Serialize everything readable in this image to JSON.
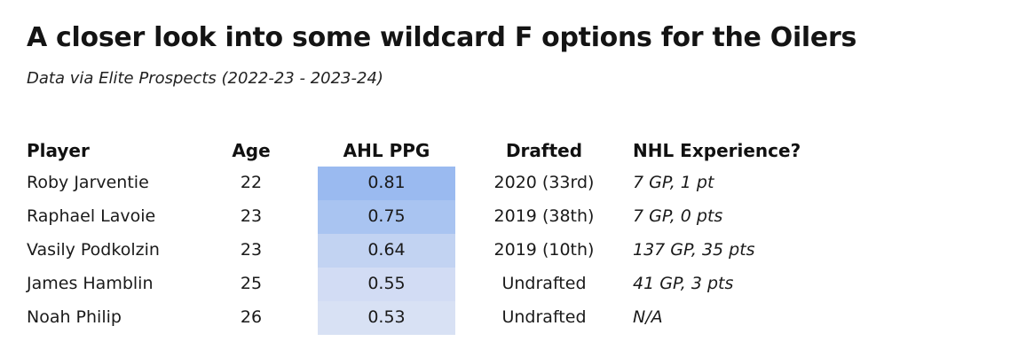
{
  "header": {
    "title": "A closer look into some wildcard F options for the Oilers",
    "subtitle": "Data via Elite Prospects (2022-23 - 2023-24)"
  },
  "table": {
    "columns": {
      "player": "Player",
      "age": "Age",
      "ppg": "AHL PPG",
      "drafted": "Drafted",
      "nhl": "NHL Experience?"
    },
    "rows": [
      {
        "player": "Roby Jarventie",
        "age": "22",
        "ppg": "0.81",
        "ppg_color": "#9abaf0",
        "drafted": "2020 (33rd)",
        "nhl": "7 GP, 1 pt"
      },
      {
        "player": "Raphael Lavoie",
        "age": "23",
        "ppg": "0.75",
        "ppg_color": "#a9c4f1",
        "drafted": "2019 (38th)",
        "nhl": "7 GP, 0 pts"
      },
      {
        "player": "Vasily Podkolzin",
        "age": "23",
        "ppg": "0.64",
        "ppg_color": "#c2d3f2",
        "drafted": "2019 (10th)",
        "nhl": "137 GP, 35 pts"
      },
      {
        "player": "James Hamblin",
        "age": "25",
        "ppg": "0.55",
        "ppg_color": "#d2dcf4",
        "drafted": "Undrafted",
        "nhl": "41 GP, 3 pts"
      },
      {
        "player": "Noah Philip",
        "age": "26",
        "ppg": "0.53",
        "ppg_color": "#d8e1f4",
        "drafted": "Undrafted",
        "nhl": "N/A"
      }
    ]
  },
  "colors": {
    "background": "#ffffff",
    "text": "#1a1a1a",
    "heatmap_high": "#9abaf0",
    "heatmap_low": "#d8e1f4"
  },
  "chart_data": {
    "type": "table",
    "title": "A closer look into some wildcard F options for the Oilers",
    "subtitle": "Data via Elite Prospects (2022-23 - 2023-24)",
    "columns": [
      "Player",
      "Age",
      "AHL PPG",
      "Drafted",
      "NHL Experience?"
    ],
    "rows": [
      [
        "Roby Jarventie",
        22,
        0.81,
        "2020 (33rd)",
        "7 GP, 1 pt"
      ],
      [
        "Raphael Lavoie",
        23,
        0.75,
        "2019 (38th)",
        "7 GP, 0 pts"
      ],
      [
        "Vasily Podkolzin",
        23,
        0.64,
        "2019 (10th)",
        "137 GP, 35 pts"
      ],
      [
        "James Hamblin",
        25,
        0.55,
        "Undrafted",
        "41 GP, 3 pts"
      ],
      [
        "Noah Philip",
        26,
        0.53,
        "Undrafted",
        "N/A"
      ]
    ],
    "heatmap": {
      "column": "AHL PPG",
      "min": 0.53,
      "max": 0.81,
      "colors": [
        "#9abaf0",
        "#a9c4f1",
        "#c2d3f2",
        "#d2dcf4",
        "#d8e1f4"
      ]
    },
    "legend_position": "none",
    "grid": false
  }
}
